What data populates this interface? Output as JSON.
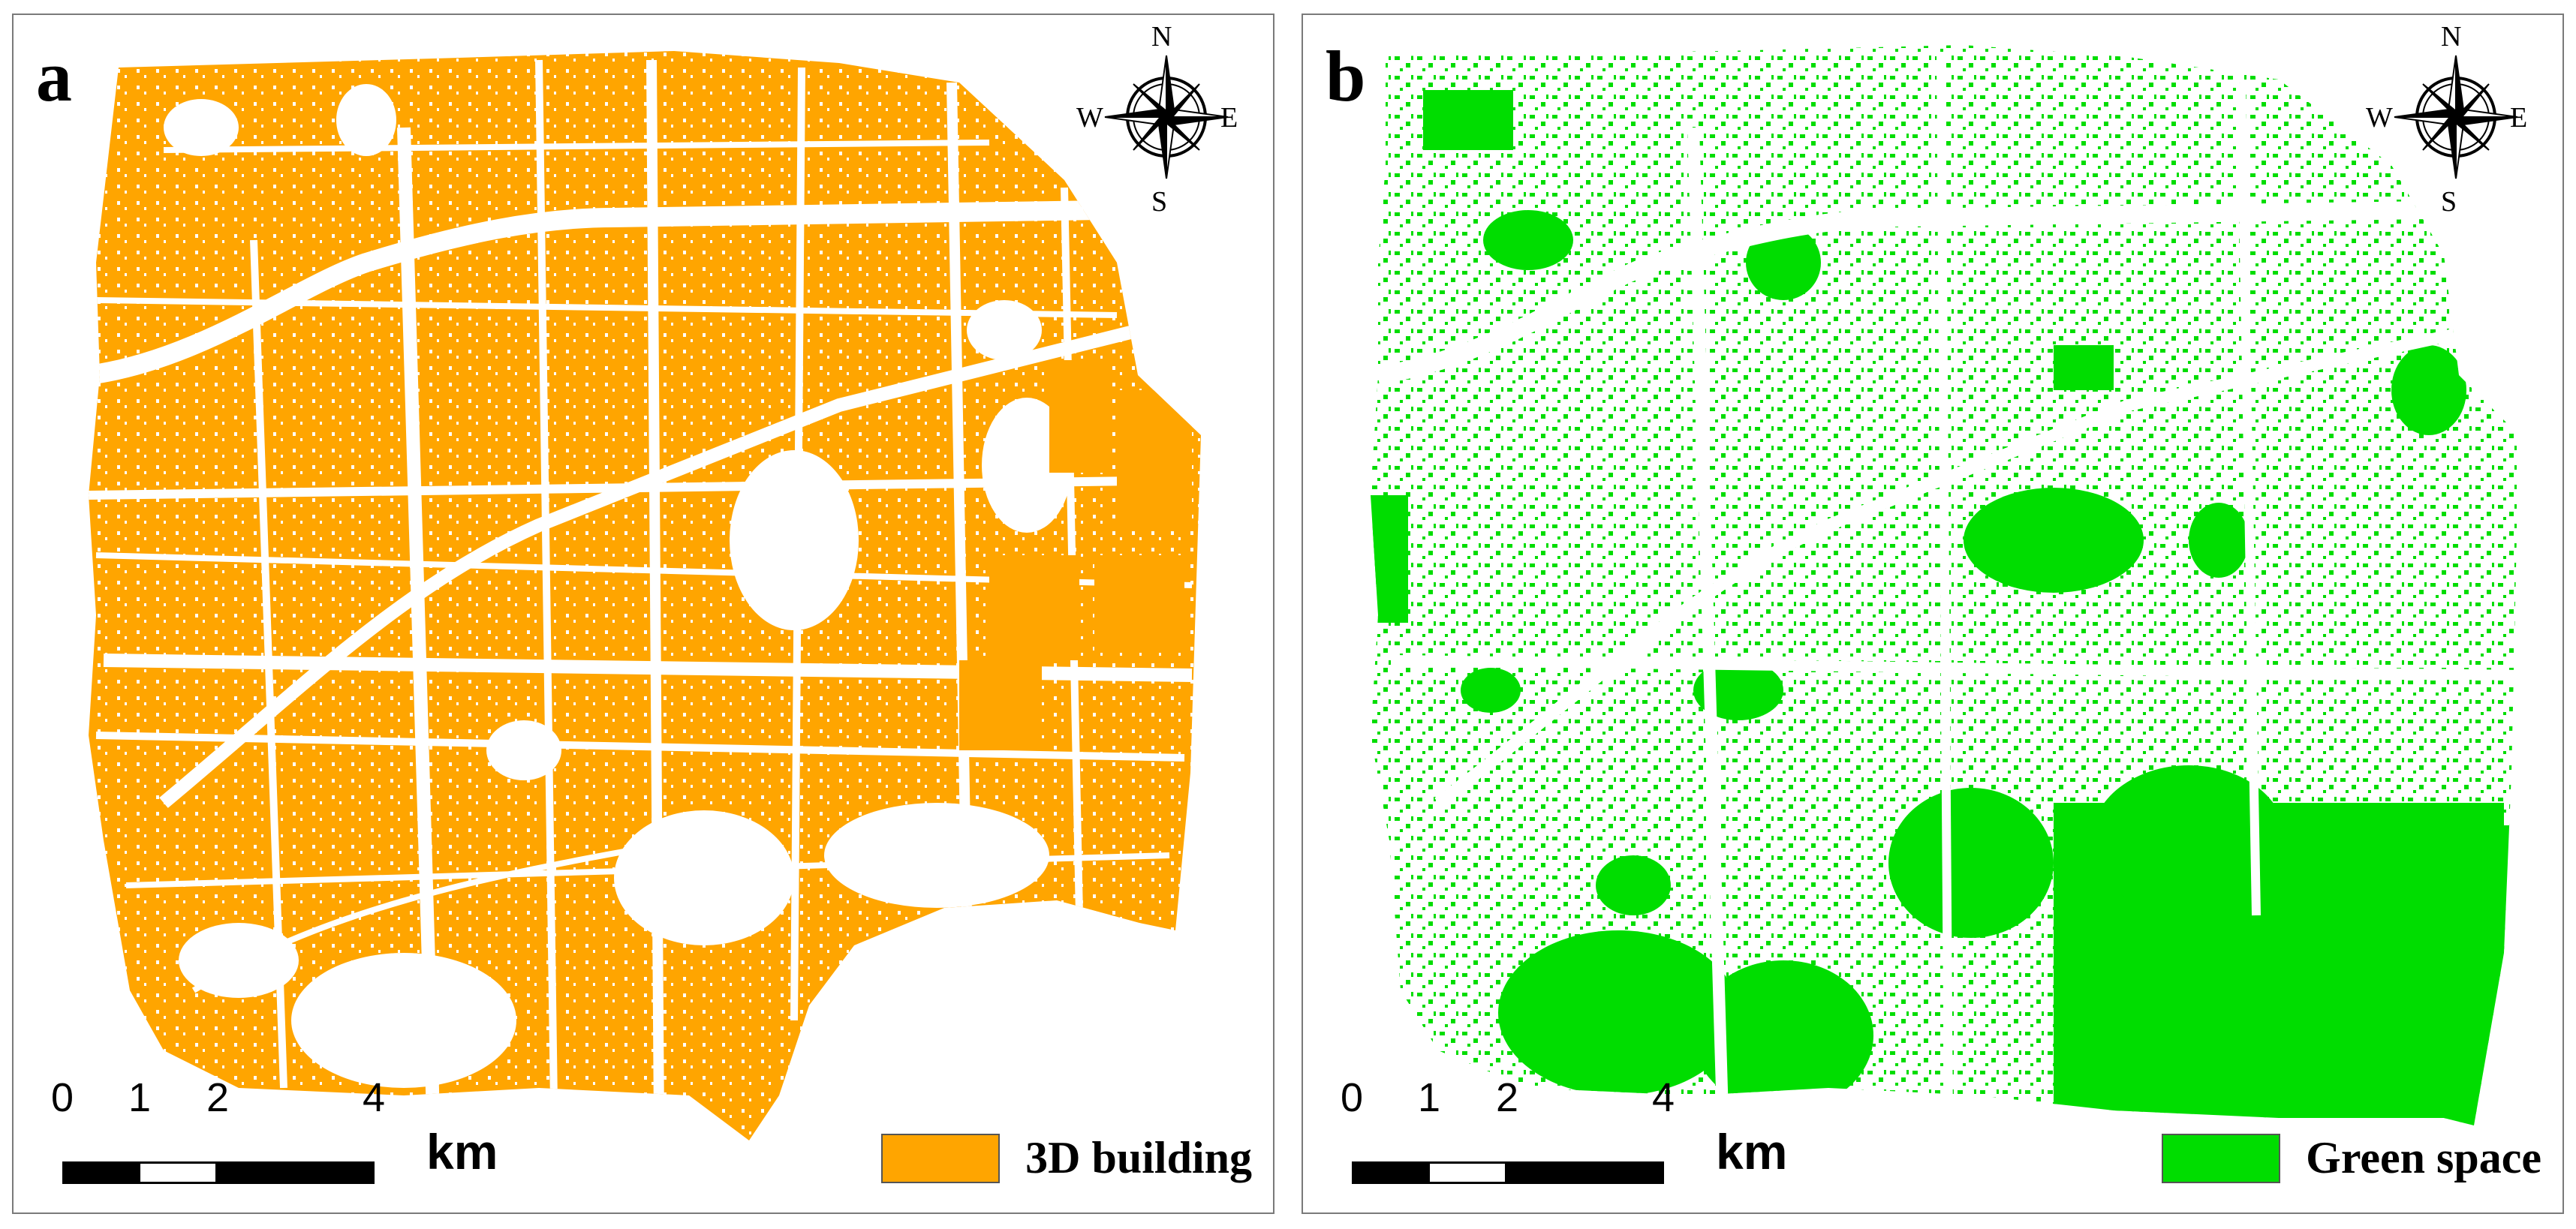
{
  "panels": [
    {
      "letter": "a",
      "legend_label": "3D building",
      "fill_color": "#ffa500"
    },
    {
      "letter": "b",
      "legend_label": "Green space",
      "fill_color": "#00dd00"
    }
  ],
  "compass": {
    "north": "N",
    "south": "S",
    "east": "E",
    "west": "W"
  },
  "scale_bar": {
    "ticks": [
      "0",
      "1",
      "2",
      "4"
    ],
    "unit": "km"
  }
}
